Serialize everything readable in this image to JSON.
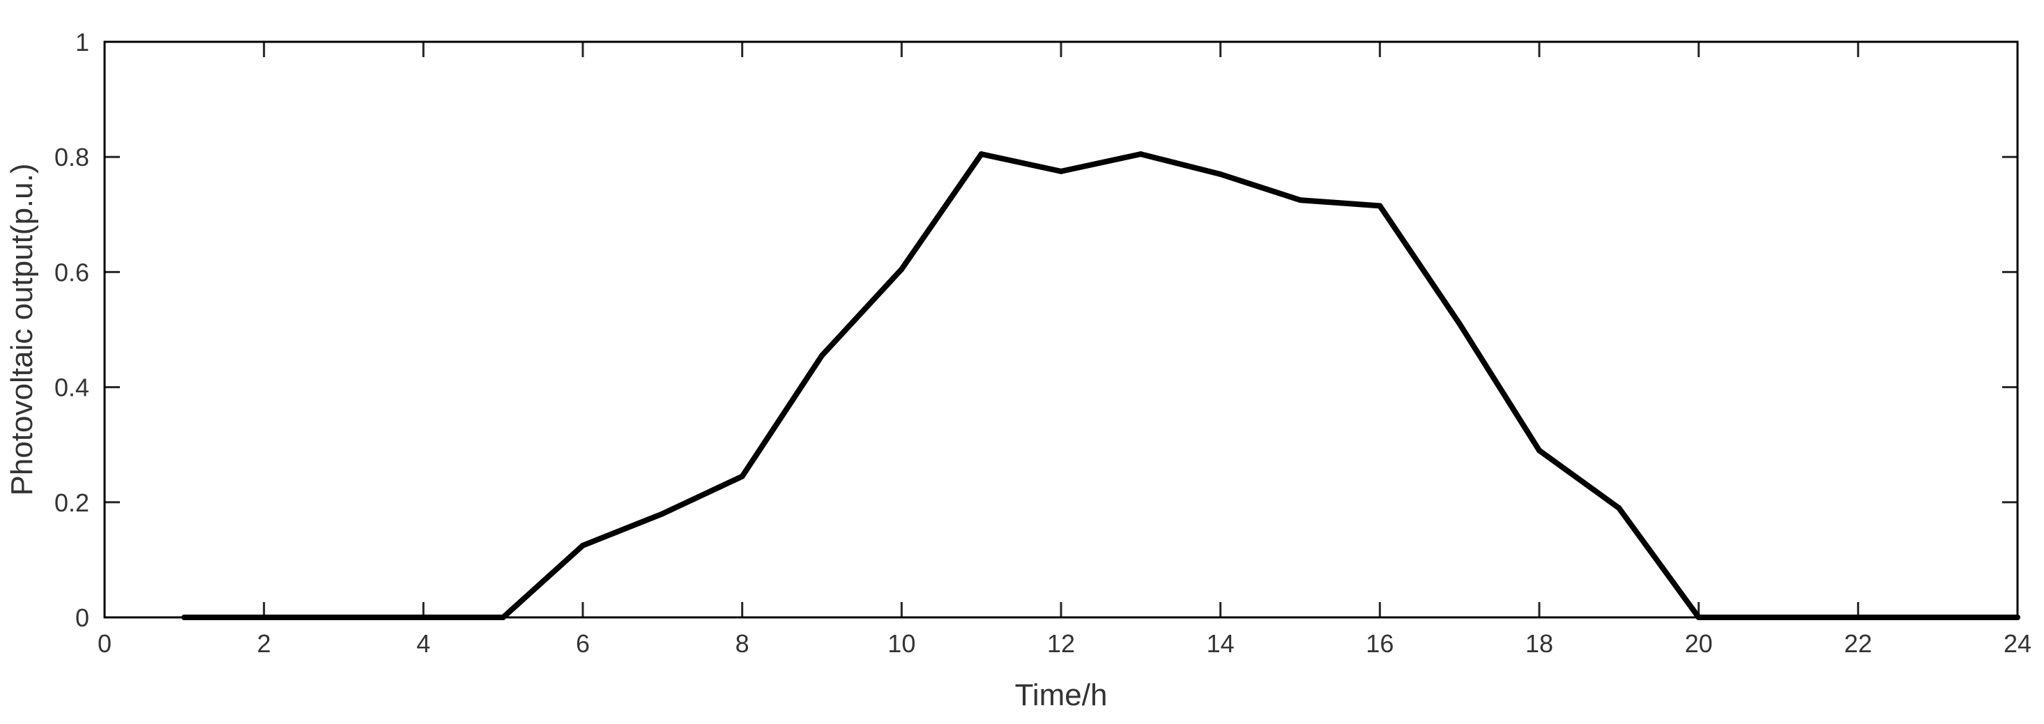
{
  "chart_data": {
    "type": "line",
    "title": "",
    "xlabel": "Time/h",
    "ylabel": "Photovoltaic output(p.u.)",
    "xlim": [
      0,
      24
    ],
    "ylim": [
      0,
      1
    ],
    "xticks": [
      0,
      2,
      4,
      6,
      8,
      10,
      12,
      14,
      16,
      18,
      20,
      22,
      24
    ],
    "yticks": [
      0,
      0.2,
      0.4,
      0.6,
      0.8,
      1
    ],
    "xtick_labels": [
      "0",
      "2",
      "4",
      "6",
      "8",
      "10",
      "12",
      "14",
      "16",
      "18",
      "20",
      "22",
      "24"
    ],
    "ytick_labels": [
      "0",
      "0.2",
      "0.4",
      "0.6",
      "0.8",
      "1"
    ],
    "grid": false,
    "legend": "none",
    "series": [
      {
        "color": "#000000",
        "x": [
          1,
          2,
          3,
          4,
          5,
          6,
          7,
          8,
          9,
          10,
          11,
          12,
          13,
          14,
          15,
          16,
          17,
          18,
          19,
          20,
          21,
          22,
          23,
          24
        ],
        "y": [
          0,
          0,
          0,
          0,
          0,
          0.125,
          0.18,
          0.245,
          0.455,
          0.605,
          0.805,
          0.775,
          0.805,
          0.77,
          0.725,
          0.715,
          0.51,
          0.29,
          0.19,
          0,
          0,
          0,
          0,
          0
        ]
      }
    ]
  }
}
